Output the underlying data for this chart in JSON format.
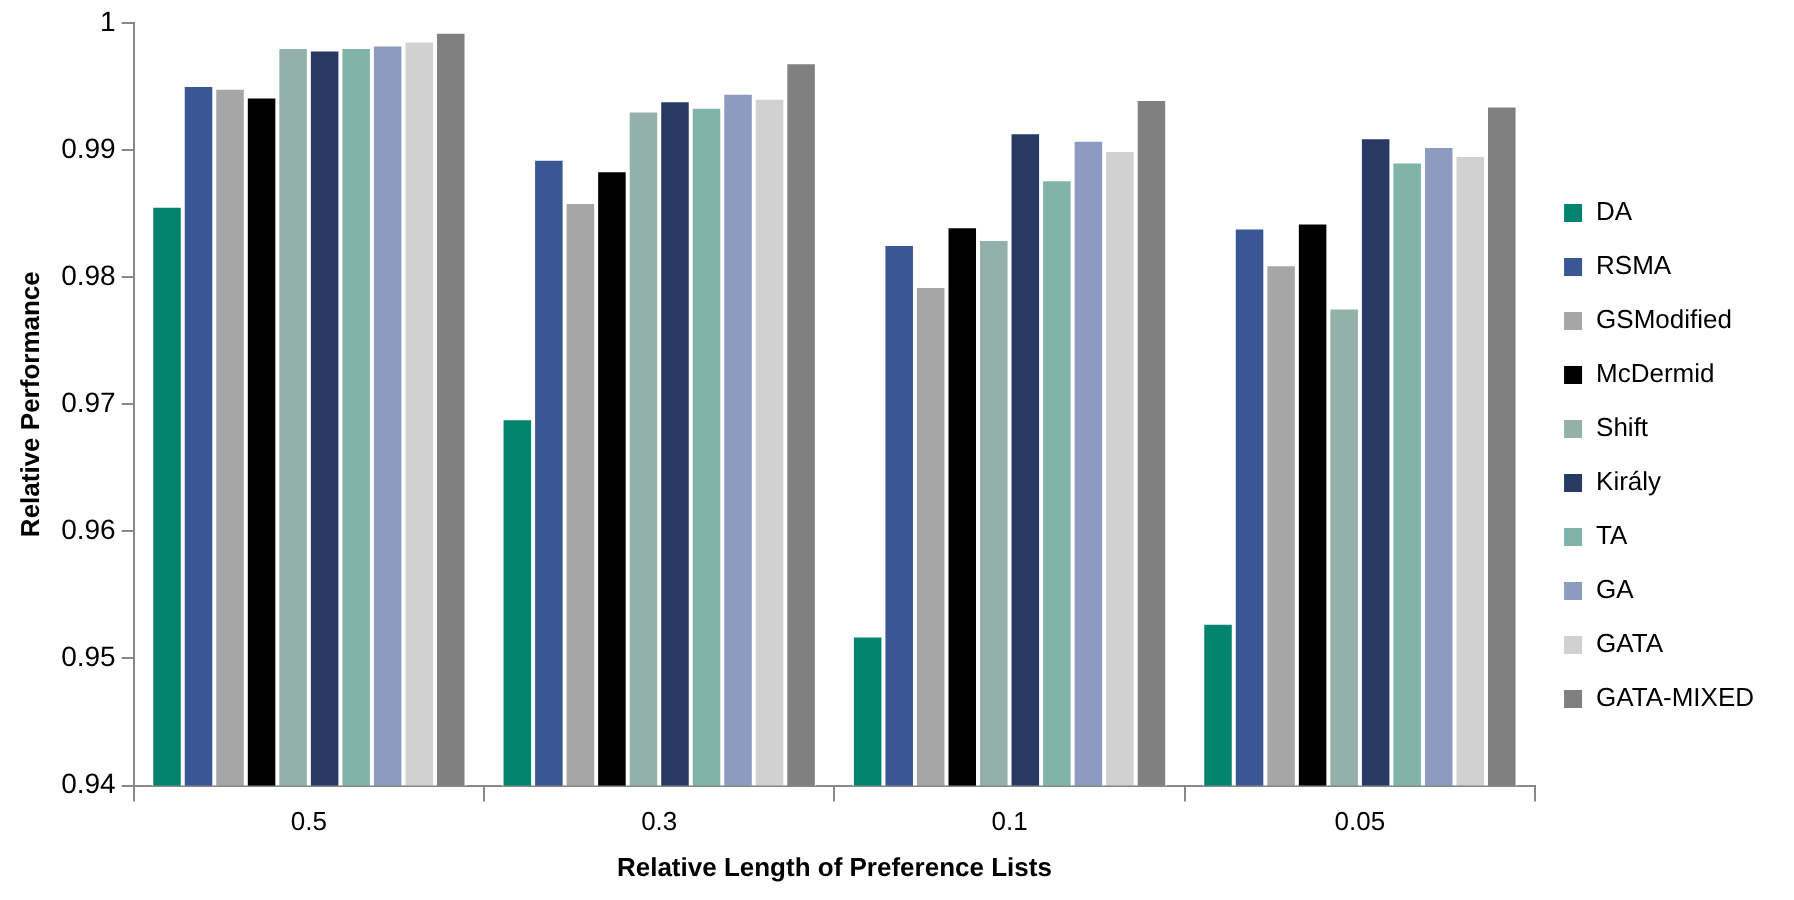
{
  "chart_data": {
    "type": "bar",
    "xlabel": "Relative Length of Preference Lists",
    "ylabel": "Relative Performance",
    "categories": [
      "0.5",
      "0.3",
      "0.1",
      "0.05"
    ],
    "series": [
      {
        "name": "DA",
        "color": "#00846f",
        "values": [
          0.9856,
          0.9689,
          0.9518,
          0.9528
        ]
      },
      {
        "name": "RSMA",
        "color": "#3a5795",
        "values": [
          0.9951,
          0.9893,
          0.9826,
          0.9839
        ]
      },
      {
        "name": "GSModified",
        "color": "#a6a6a6",
        "values": [
          0.9949,
          0.9859,
          0.9793,
          0.981
        ]
      },
      {
        "name": "McDermid",
        "color": "#000000",
        "values": [
          0.9942,
          0.9884,
          0.984,
          0.9843
        ]
      },
      {
        "name": "Shift",
        "color": "#93b1a8",
        "values": [
          0.9981,
          0.9931,
          0.983,
          0.9776
        ]
      },
      {
        "name": "Király",
        "color": "#283963",
        "values": [
          0.9979,
          0.9939,
          0.9914,
          0.991
        ]
      },
      {
        "name": "TA",
        "color": "#80b4a8",
        "values": [
          0.9981,
          0.9934,
          0.9877,
          0.9891
        ]
      },
      {
        "name": "GA",
        "color": "#8d9bc1",
        "values": [
          0.9983,
          0.9945,
          0.9908,
          0.9903
        ]
      },
      {
        "name": "GATA",
        "color": "#d1d1d1",
        "values": [
          0.9986,
          0.9941,
          0.99,
          0.9896
        ]
      },
      {
        "name": "GATA-MIXED",
        "color": "#808080",
        "values": [
          0.9993,
          0.9969,
          0.994,
          0.9935
        ]
      }
    ],
    "ylim": [
      0.94,
      1
    ],
    "yticks": [
      0.94,
      0.95,
      0.96,
      0.97,
      0.98,
      0.99,
      1
    ],
    "grid": false,
    "legend": "right"
  }
}
